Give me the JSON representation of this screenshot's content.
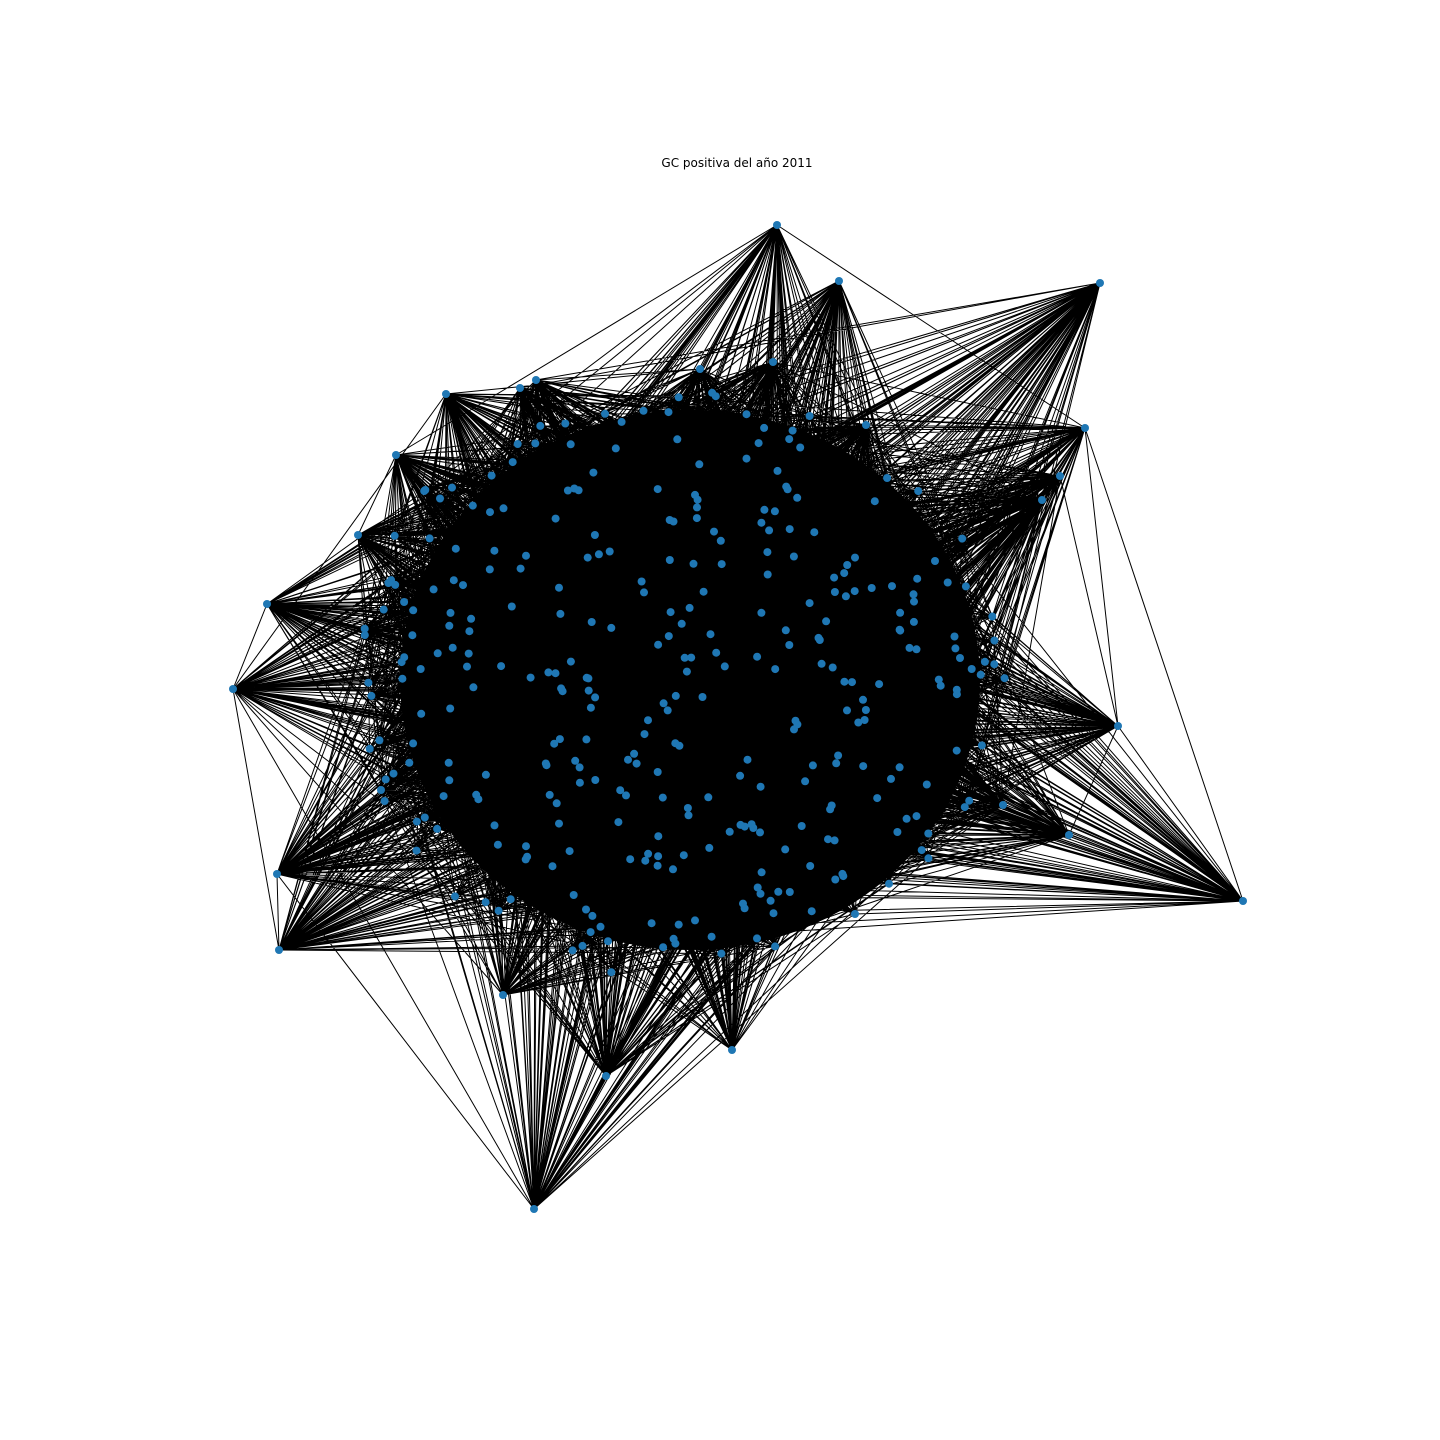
{
  "figure": {
    "title": "GC positiva del año 2011"
  },
  "graph": {
    "node_color": "#1f77b4",
    "edge_color": "#000000",
    "background": "#ffffff"
  }
}
